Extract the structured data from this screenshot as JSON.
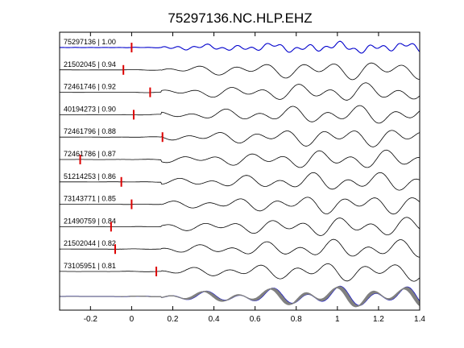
{
  "chart_data": {
    "type": "line",
    "title": "75297136.NC.HLP.EHZ",
    "xlabel": "",
    "ylabel": "",
    "xlim": [
      -0.35,
      1.4
    ],
    "x_ticks": [
      -0.2,
      0,
      0.2,
      0.4,
      0.6,
      0.8,
      1,
      1.2,
      1.4
    ],
    "x_tick_labels": [
      "-0.2",
      "0",
      "0.2",
      "0.4",
      "0.6",
      "0.8",
      "1",
      "1.2",
      "1.4"
    ],
    "grid": false,
    "colors": {
      "reference": "#0000cc",
      "trace": "#000000",
      "stack": "#808080",
      "pick": "#dd0000"
    },
    "traces": [
      {
        "id": "75297136",
        "cc": "1.00",
        "pick": 0.0,
        "reference": true
      },
      {
        "id": "21502045",
        "cc": "0.94",
        "pick": -0.04
      },
      {
        "id": "72461746",
        "cc": "0.92",
        "pick": 0.09
      },
      {
        "id": "40194273",
        "cc": "0.90",
        "pick": 0.01
      },
      {
        "id": "72461796",
        "cc": "0.88",
        "pick": 0.15
      },
      {
        "id": "72461786",
        "cc": "0.87",
        "pick": -0.25
      },
      {
        "id": "51214253",
        "cc": "0.86",
        "pick": -0.05
      },
      {
        "id": "73143771",
        "cc": "0.85",
        "pick": 0.0
      },
      {
        "id": "21490759",
        "cc": "0.84",
        "pick": -0.1
      },
      {
        "id": "21502044",
        "cc": "0.82",
        "pick": -0.08
      },
      {
        "id": "73105951",
        "cc": "0.81",
        "pick": 0.12
      }
    ]
  }
}
